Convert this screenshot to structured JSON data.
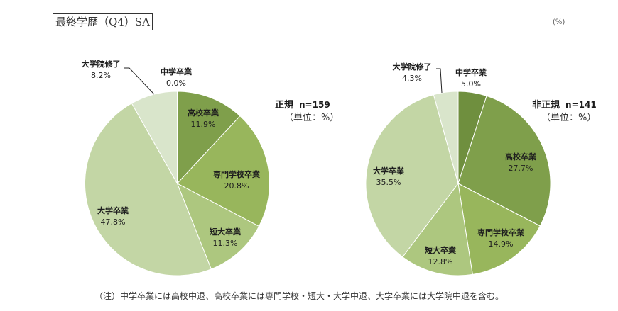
{
  "header": {
    "title": "最終学歴（Q4）SA",
    "unit": "(%)"
  },
  "note": "（注）中学卒業には高校中退、高校卒業には専門学校・短大・大学中退、大学卒業には大学院中退を含む。",
  "colors": {
    "中学卒業": "#6f8f3e",
    "高校卒業": "#7f9f4b",
    "専門学校卒業": "#98b65c",
    "短大卒業": "#adc77f",
    "大学卒業": "#c3d6a5",
    "大学院修了": "#d9e5cb"
  },
  "charts": [
    {
      "group": "正規",
      "n_label": "n=159",
      "unit_label": "（単位：%）"
    },
    {
      "group": "非正規",
      "n_label": "n=141",
      "unit_label": "（単位：%）"
    }
  ],
  "chart_data": [
    {
      "type": "pie",
      "title": "正規 n=159",
      "subtitle": "（単位：%）",
      "categories": [
        "中学卒業",
        "高校卒業",
        "専門学校卒業",
        "短大卒業",
        "大学卒業",
        "大学院修了"
      ],
      "values": [
        0.0,
        11.9,
        20.8,
        11.3,
        47.8,
        8.2
      ],
      "start_angle": "12 o'clock, clockwise"
    },
    {
      "type": "pie",
      "title": "非正規 n=141",
      "subtitle": "（単位：%）",
      "categories": [
        "中学卒業",
        "高校卒業",
        "専門学校卒業",
        "短大卒業",
        "大学卒業",
        "大学院修了"
      ],
      "values": [
        5.0,
        27.7,
        14.9,
        12.8,
        35.5,
        4.3
      ],
      "start_angle": "12 o'clock, clockwise"
    }
  ]
}
